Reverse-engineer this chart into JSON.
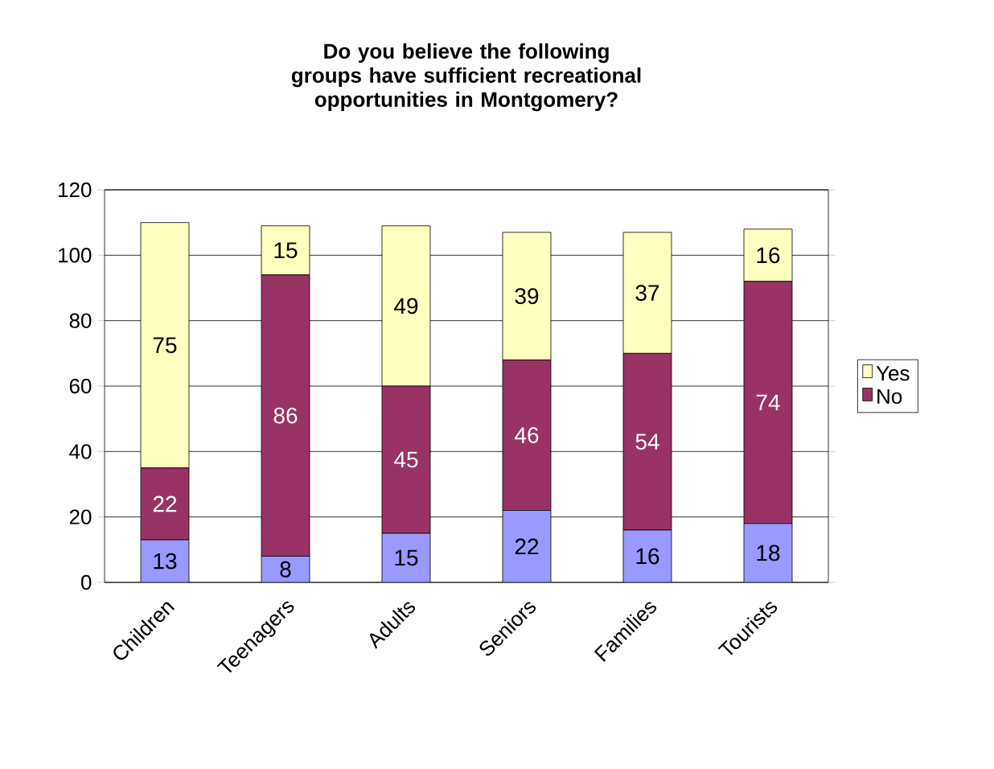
{
  "chart_data": {
    "type": "bar",
    "stacked": true,
    "title": "Do you believe the following groups have sufficient recreational opportunities in Montgomery?",
    "categories": [
      "Children",
      "Teenagers",
      "Adults",
      "Seniors",
      "Families",
      "Tourists"
    ],
    "series": [
      {
        "color": "#9999ff",
        "values": [
          13,
          8,
          15,
          22,
          16,
          18
        ]
      },
      {
        "name": "No",
        "color": "#993366",
        "values": [
          22,
          86,
          45,
          46,
          54,
          74
        ]
      },
      {
        "name": "Yes",
        "color": "#ffffc0",
        "values": [
          75,
          15,
          49,
          39,
          37,
          16
        ]
      }
    ],
    "ylim": [
      0,
      120
    ],
    "yticks": [
      0,
      20,
      40,
      60,
      80,
      100,
      120
    ],
    "grid": "y",
    "legend": "right",
    "data_labels": true
  }
}
